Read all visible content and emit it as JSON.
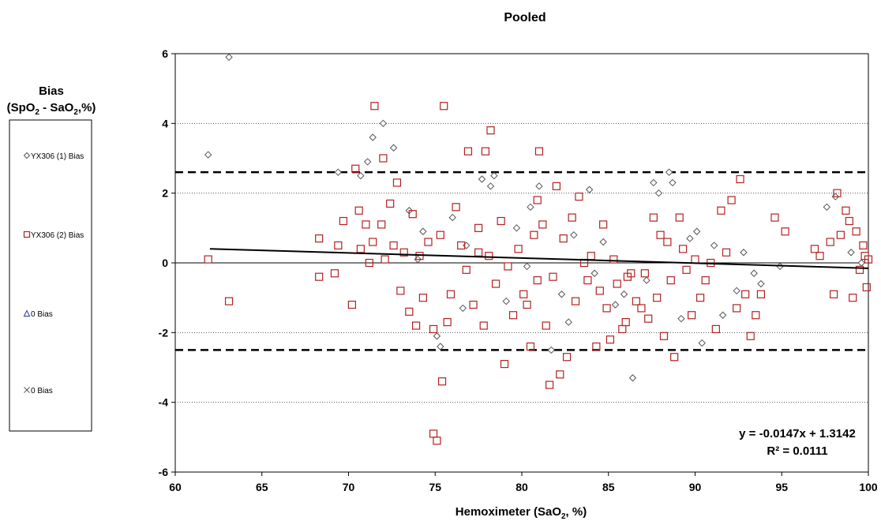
{
  "chart_data": {
    "type": "scatter",
    "title": "Pooled",
    "xlabel": "Hemoximeter (SaO2, %)",
    "ylabel": "Bias (SpO2 - SaO2,%)",
    "xlim": [
      60,
      100
    ],
    "ylim": [
      -6,
      6
    ],
    "xticks": [
      60,
      65,
      70,
      75,
      80,
      85,
      90,
      95,
      100
    ],
    "yticks": [
      -6,
      -4,
      -2,
      0,
      2,
      4,
      6
    ],
    "grid": "horizontal dotted at ±2, ±4",
    "limit_lines": [
      2.6,
      -2.5
    ],
    "legend_position": "left",
    "trendline": {
      "slope": -0.0147,
      "intercept": 1.3142,
      "x_range": [
        62,
        100
      ]
    },
    "equation": "y = -0.0147x + 1.3142",
    "r_squared": "R² = 0.0111",
    "colors": {
      "series1": "#555555",
      "series2": "#b22222",
      "series3": "#2a3f8f",
      "series4": "#555555",
      "trend": "#000000"
    },
    "series": [
      {
        "name": "YX306  (1) Bias",
        "marker": "diamond",
        "points": [
          [
            61.9,
            3.1
          ],
          [
            63.1,
            5.9
          ],
          [
            69.4,
            2.6
          ],
          [
            70.7,
            2.5
          ],
          [
            71.1,
            2.9
          ],
          [
            71.4,
            3.6
          ],
          [
            72.0,
            4.0
          ],
          [
            72.6,
            3.3
          ],
          [
            73.5,
            1.5
          ],
          [
            74.3,
            0.9
          ],
          [
            75.3,
            -2.4
          ],
          [
            75.1,
            -2.1
          ],
          [
            76.0,
            1.3
          ],
          [
            76.8,
            0.5
          ],
          [
            77.7,
            2.4
          ],
          [
            78.2,
            2.2
          ],
          [
            78.4,
            2.5
          ],
          [
            79.1,
            -1.1
          ],
          [
            80.3,
            -0.1
          ],
          [
            80.5,
            1.6
          ],
          [
            81.0,
            2.2
          ],
          [
            81.7,
            -2.5
          ],
          [
            82.3,
            -0.9
          ],
          [
            82.7,
            -1.7
          ],
          [
            83.0,
            0.8
          ],
          [
            83.9,
            2.1
          ],
          [
            84.2,
            -0.3
          ],
          [
            85.4,
            -1.2
          ],
          [
            85.9,
            -0.9
          ],
          [
            86.4,
            -3.3
          ],
          [
            87.2,
            -0.5
          ],
          [
            87.6,
            2.3
          ],
          [
            87.9,
            2.0
          ],
          [
            88.5,
            2.6
          ],
          [
            88.7,
            2.3
          ],
          [
            89.2,
            -1.6
          ],
          [
            89.7,
            0.7
          ],
          [
            90.1,
            0.9
          ],
          [
            90.4,
            -2.3
          ],
          [
            91.1,
            0.5
          ],
          [
            91.6,
            -1.5
          ],
          [
            92.4,
            -0.8
          ],
          [
            92.8,
            0.3
          ],
          [
            93.4,
            -0.3
          ],
          [
            93.8,
            -0.6
          ],
          [
            94.9,
            -0.1
          ],
          [
            97.6,
            1.6
          ],
          [
            98.1,
            1.9
          ],
          [
            99.0,
            0.3
          ],
          [
            99.6,
            0.0
          ],
          [
            74.0,
            0.1
          ],
          [
            76.6,
            -1.3
          ],
          [
            79.7,
            1.0
          ],
          [
            84.7,
            0.6
          ]
        ]
      },
      {
        "name": "YX306 (2) Bias",
        "marker": "square",
        "points": [
          [
            61.9,
            0.1
          ],
          [
            63.1,
            -1.1
          ],
          [
            68.3,
            0.7
          ],
          [
            68.3,
            -0.4
          ],
          [
            69.2,
            -0.3
          ],
          [
            69.4,
            0.5
          ],
          [
            69.7,
            1.2
          ],
          [
            70.2,
            -1.2
          ],
          [
            70.4,
            2.7
          ],
          [
            70.6,
            1.5
          ],
          [
            70.7,
            0.4
          ],
          [
            71.0,
            1.1
          ],
          [
            71.2,
            0.0
          ],
          [
            71.4,
            0.6
          ],
          [
            71.5,
            4.5
          ],
          [
            71.9,
            1.1
          ],
          [
            72.0,
            3.0
          ],
          [
            72.1,
            0.1
          ],
          [
            72.4,
            1.7
          ],
          [
            72.6,
            0.5
          ],
          [
            72.8,
            2.3
          ],
          [
            73.0,
            -0.8
          ],
          [
            73.2,
            0.3
          ],
          [
            73.5,
            -1.4
          ],
          [
            73.7,
            1.4
          ],
          [
            73.9,
            -1.8
          ],
          [
            74.1,
            0.2
          ],
          [
            74.3,
            -1.0
          ],
          [
            74.6,
            0.6
          ],
          [
            74.9,
            -1.9
          ],
          [
            74.9,
            -4.9
          ],
          [
            75.1,
            -5.1
          ],
          [
            75.3,
            0.8
          ],
          [
            75.4,
            -3.4
          ],
          [
            75.5,
            4.5
          ],
          [
            75.7,
            -1.7
          ],
          [
            75.9,
            -0.9
          ],
          [
            76.2,
            1.6
          ],
          [
            76.5,
            0.5
          ],
          [
            76.8,
            -0.2
          ],
          [
            76.9,
            3.2
          ],
          [
            77.2,
            -1.2
          ],
          [
            77.5,
            1.0
          ],
          [
            77.8,
            -1.8
          ],
          [
            77.9,
            3.2
          ],
          [
            78.1,
            0.2
          ],
          [
            78.2,
            3.8
          ],
          [
            78.5,
            -0.6
          ],
          [
            78.8,
            1.2
          ],
          [
            79.0,
            -2.9
          ],
          [
            79.2,
            -0.1
          ],
          [
            79.5,
            -1.5
          ],
          [
            79.8,
            0.4
          ],
          [
            80.1,
            -0.9
          ],
          [
            80.3,
            -1.2
          ],
          [
            80.5,
            -2.4
          ],
          [
            80.7,
            0.8
          ],
          [
            80.9,
            -0.5
          ],
          [
            81.0,
            3.2
          ],
          [
            81.2,
            1.1
          ],
          [
            81.4,
            -1.8
          ],
          [
            81.6,
            -3.5
          ],
          [
            81.8,
            -0.4
          ],
          [
            82.0,
            2.2
          ],
          [
            82.2,
            -3.2
          ],
          [
            82.4,
            0.7
          ],
          [
            82.6,
            -2.7
          ],
          [
            82.9,
            1.3
          ],
          [
            83.1,
            -1.1
          ],
          [
            83.3,
            1.9
          ],
          [
            83.6,
            0.0
          ],
          [
            83.8,
            -0.5
          ],
          [
            84.0,
            0.2
          ],
          [
            84.3,
            -2.4
          ],
          [
            84.5,
            -0.8
          ],
          [
            84.7,
            1.1
          ],
          [
            84.9,
            -1.3
          ],
          [
            85.1,
            -2.2
          ],
          [
            85.3,
            0.1
          ],
          [
            85.5,
            -0.6
          ],
          [
            85.8,
            -1.9
          ],
          [
            86.1,
            -0.4
          ],
          [
            86.3,
            -0.3
          ],
          [
            86.6,
            -1.1
          ],
          [
            86.9,
            -1.3
          ],
          [
            87.1,
            -0.3
          ],
          [
            87.3,
            -1.6
          ],
          [
            87.6,
            1.3
          ],
          [
            87.8,
            -1.0
          ],
          [
            88.0,
            0.8
          ],
          [
            88.2,
            -2.1
          ],
          [
            88.4,
            0.6
          ],
          [
            88.6,
            -0.5
          ],
          [
            88.8,
            -2.7
          ],
          [
            89.1,
            1.3
          ],
          [
            89.3,
            0.4
          ],
          [
            89.5,
            -0.2
          ],
          [
            89.8,
            -1.5
          ],
          [
            90.0,
            0.1
          ],
          [
            90.3,
            -1.0
          ],
          [
            90.6,
            -0.5
          ],
          [
            90.9,
            0.0
          ],
          [
            91.2,
            -1.9
          ],
          [
            91.5,
            1.5
          ],
          [
            91.8,
            0.3
          ],
          [
            92.1,
            1.8
          ],
          [
            92.4,
            -1.3
          ],
          [
            92.6,
            2.4
          ],
          [
            92.9,
            -0.9
          ],
          [
            93.2,
            -2.1
          ],
          [
            93.5,
            -1.5
          ],
          [
            93.8,
            -0.9
          ],
          [
            94.6,
            1.3
          ],
          [
            95.2,
            0.9
          ],
          [
            96.9,
            0.4
          ],
          [
            97.2,
            0.2
          ],
          [
            97.8,
            0.6
          ],
          [
            98.0,
            -0.9
          ],
          [
            98.2,
            2.0
          ],
          [
            98.4,
            0.8
          ],
          [
            98.7,
            1.5
          ],
          [
            98.9,
            1.2
          ],
          [
            99.1,
            -1.0
          ],
          [
            99.3,
            0.9
          ],
          [
            99.5,
            -0.2
          ],
          [
            99.7,
            0.5
          ],
          [
            99.8,
            0.2
          ],
          [
            99.9,
            -0.7
          ],
          [
            100.0,
            0.1
          ],
          [
            77.5,
            0.3
          ],
          [
            80.9,
            1.8
          ],
          [
            86.0,
            -1.7
          ]
        ]
      },
      {
        "name": "0 Bias",
        "marker": "triangle",
        "points": []
      },
      {
        "name": "0 Bias",
        "marker": "x",
        "points": []
      }
    ]
  }
}
